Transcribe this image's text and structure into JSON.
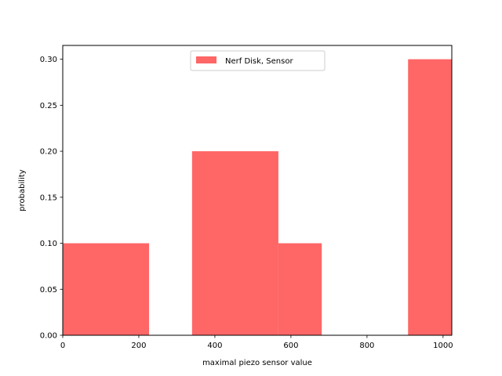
{
  "chart_data": {
    "type": "bar",
    "title": "",
    "xlabel": "maximal piezo sensor value",
    "ylabel": "probability",
    "xlim": [
      0,
      1023
    ],
    "ylim": [
      0,
      0.315
    ],
    "xticks": [
      "0",
      "200",
      "400",
      "600",
      "800",
      "1000"
    ],
    "xtick_values": [
      0,
      200,
      400,
      600,
      800,
      1000
    ],
    "yticks": [
      "0.00",
      "0.05",
      "0.10",
      "0.15",
      "0.20",
      "0.25",
      "0.30"
    ],
    "ytick_values": [
      0,
      0.05,
      0.1,
      0.15,
      0.2,
      0.25,
      0.3
    ],
    "grid": false,
    "legend": {
      "placement": "top-center",
      "entries": [
        "Nerf Disk, Sensor"
      ]
    },
    "series": [
      {
        "name": "Nerf Disk, Sensor",
        "color": "#ff6666",
        "bins": [
          {
            "x0": 0,
            "x1": 227,
            "value": 0.1
          },
          {
            "x0": 340,
            "x1": 567,
            "value": 0.2
          },
          {
            "x0": 567,
            "x1": 681,
            "value": 0.1
          },
          {
            "x0": 908,
            "x1": 1023,
            "value": 0.3
          }
        ]
      }
    ]
  }
}
